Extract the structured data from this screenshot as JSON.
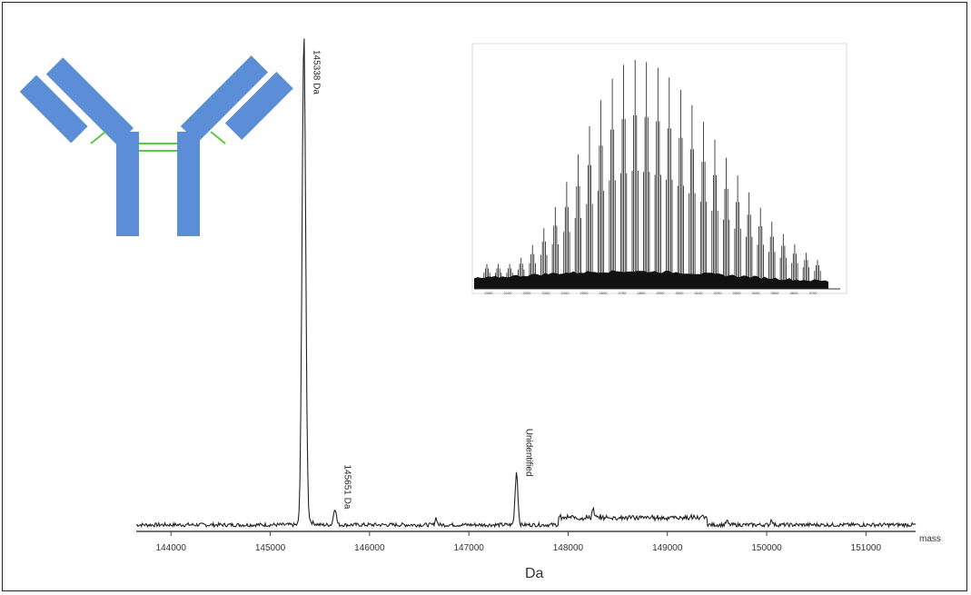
{
  "colors": {
    "antibody": "#5b8ed6",
    "disulfide": "#59c93f",
    "trace": "#222222",
    "frame": "#222222"
  },
  "icons": {
    "antibody": "antibody-icon"
  },
  "chart_data": [
    {
      "type": "line",
      "xlabel": "Da",
      "x_unit_label": "mass",
      "xlim": [
        143650,
        151500
      ],
      "ylim": [
        0,
        100
      ],
      "ticks": [
        144000,
        145000,
        146000,
        147000,
        148000,
        149000,
        150000,
        151000
      ],
      "tick_labels": [
        "144000",
        "145000",
        "146000",
        "147000",
        "148000",
        "149000",
        "150000",
        "151000"
      ],
      "peaks": [
        {
          "mass": 145338,
          "height": 100,
          "label": "145338 Da"
        },
        {
          "mass": 145651,
          "height": 3.5,
          "label": "145651 Da"
        },
        {
          "mass": 147480,
          "height": 11,
          "label": "Unidentified"
        }
      ],
      "minor_bumps": [
        {
          "mass": 146670,
          "height": 1.5
        },
        {
          "mass": 148250,
          "height": 1.8
        },
        {
          "mass": 149600,
          "height": 0.8
        },
        {
          "mass": 150050,
          "height": 1.2
        }
      ]
    },
    {
      "type": "line",
      "description_role": "inset raw charge-state envelope",
      "charge_envelope": {
        "num_peaks": 30,
        "apex_index": 13,
        "max_height": 1.0,
        "baseline_height": 0.06
      },
      "tick_labels": [
        "2000",
        "2100",
        "2200",
        "2300",
        "2400",
        "2500",
        "2600",
        "2700",
        "2800",
        "2900",
        "3000",
        "3100",
        "3200",
        "3300",
        "3400",
        "3500",
        "3600",
        "3700"
      ]
    }
  ]
}
